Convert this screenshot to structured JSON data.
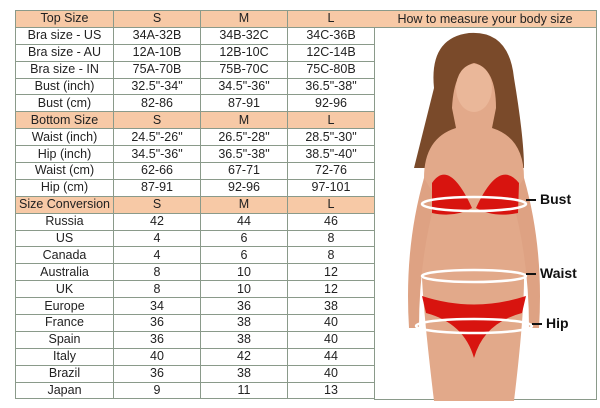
{
  "sections": [
    {
      "header": [
        "Top Size",
        "S",
        "M",
        "L"
      ],
      "rows": [
        [
          "Bra size - US",
          "34A-32B",
          "34B-32C",
          "34C-36B"
        ],
        [
          "Bra size - AU",
          "12A-10B",
          "12B-10C",
          "12C-14B"
        ],
        [
          "Bra size - IN",
          "75A-70B",
          "75B-70C",
          "75C-80B"
        ],
        [
          "Bust (inch)",
          "32.5\"-34\"",
          "34.5\"-36\"",
          "36.5\"-38\""
        ],
        [
          "Bust (cm)",
          "82-86",
          "87-91",
          "92-96"
        ]
      ]
    },
    {
      "header": [
        "Bottom Size",
        "S",
        "M",
        "L"
      ],
      "rows": [
        [
          "Waist (inch)",
          "24.5\"-26\"",
          "26.5\"-28\"",
          "28.5\"-30\""
        ],
        [
          "Hip (inch)",
          "34.5\"-36\"",
          "36.5\"-38\"",
          "38.5\"-40\""
        ],
        [
          "Waist (cm)",
          "62-66",
          "67-71",
          "72-76"
        ],
        [
          "Hip (cm)",
          "87-91",
          "92-96",
          "97-101"
        ]
      ]
    },
    {
      "header": [
        "Size Conversion",
        "S",
        "M",
        "L"
      ],
      "rows": [
        [
          "Russia",
          "42",
          "44",
          "46"
        ],
        [
          "US",
          "4",
          "6",
          "8"
        ],
        [
          "Canada",
          "4",
          "6",
          "8"
        ],
        [
          "Australia",
          "8",
          "10",
          "12"
        ],
        [
          "UK",
          "8",
          "10",
          "12"
        ],
        [
          "Europe",
          "34",
          "36",
          "38"
        ],
        [
          "France",
          "36",
          "38",
          "40"
        ],
        [
          "Spain",
          "36",
          "38",
          "40"
        ],
        [
          "Italy",
          "40",
          "42",
          "44"
        ],
        [
          "Brazil",
          "36",
          "38",
          "40"
        ],
        [
          "Japan",
          "9",
          "11",
          "13"
        ]
      ]
    }
  ],
  "measure_panel": {
    "title": "How to measure your body size",
    "labels": {
      "bust": "Bust",
      "waist": "Waist",
      "hip": "Hip"
    }
  },
  "colors": {
    "header_bg": "#f7c9a6",
    "bikini": "#d8140f",
    "skin": "#e2a98a"
  }
}
